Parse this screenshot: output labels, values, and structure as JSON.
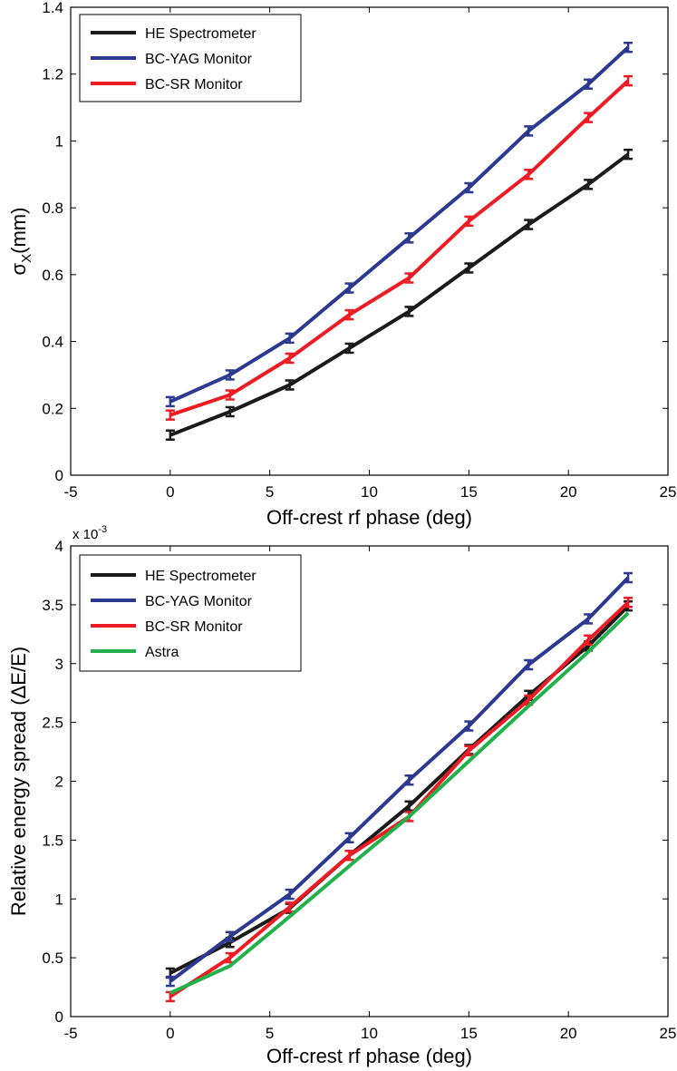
{
  "chart_data": [
    {
      "type": "line",
      "xlabel": "Off-crest rf phase (deg)",
      "ylabel_symbol": "σ",
      "ylabel_subscript": "X",
      "ylabel_unit": "(mm)",
      "xlim": [
        -5,
        25
      ],
      "ylim": [
        0,
        1.4
      ],
      "xticks": [
        -5,
        0,
        5,
        10,
        15,
        20,
        25
      ],
      "yticks": [
        0,
        0.2,
        0.4,
        0.6,
        0.8,
        1,
        1.2,
        1.4
      ],
      "xtick_labels": [
        "-5",
        "0",
        "5",
        "10",
        "15",
        "20",
        "25"
      ],
      "ytick_labels": [
        "0",
        "0.2",
        "0.4",
        "0.6",
        "0.8",
        "1",
        "1.2",
        "1.4"
      ],
      "grid": false,
      "legend_position": "top-left",
      "series": [
        {
          "name": "HE Spectrometer",
          "color": "#1a1a1a",
          "error_bars": true,
          "x": [
            0,
            3,
            6,
            9,
            12,
            15,
            18,
            21,
            23
          ],
          "values": [
            0.12,
            0.19,
            0.27,
            0.38,
            0.49,
            0.62,
            0.75,
            0.87,
            0.96
          ]
        },
        {
          "name": "BC-YAG Monitor",
          "color": "#2b3990",
          "error_bars": true,
          "x": [
            0,
            3,
            6,
            9,
            12,
            15,
            18,
            21,
            23
          ],
          "values": [
            0.22,
            0.3,
            0.41,
            0.56,
            0.71,
            0.86,
            1.03,
            1.17,
            1.28
          ]
        },
        {
          "name": "BC-SR Monitor",
          "color": "#ed1c24",
          "error_bars": true,
          "x": [
            0,
            3,
            6,
            9,
            12,
            15,
            18,
            21,
            23
          ],
          "values": [
            0.18,
            0.24,
            0.35,
            0.48,
            0.59,
            0.76,
            0.9,
            1.07,
            1.18
          ]
        }
      ]
    },
    {
      "type": "line",
      "xlabel": "Off-crest rf phase (deg)",
      "ylabel": "Relative energy spread (ΔE/E)",
      "exponent_label": "x 10",
      "exponent_power": "-3",
      "xlim": [
        -5,
        25
      ],
      "ylim": [
        0,
        4
      ],
      "xticks": [
        -5,
        0,
        5,
        10,
        15,
        20,
        25
      ],
      "yticks": [
        0,
        0.5,
        1,
        1.5,
        2,
        2.5,
        3,
        3.5,
        4
      ],
      "xtick_labels": [
        "-5",
        "0",
        "5",
        "10",
        "15",
        "20",
        "25"
      ],
      "ytick_labels": [
        "0",
        "0.5",
        "1",
        "1.5",
        "2",
        "2.5",
        "3",
        "3.5",
        "4"
      ],
      "grid": false,
      "legend_position": "top-left",
      "series": [
        {
          "name": "HE Spectrometer",
          "color": "#1a1a1a",
          "error_bars": true,
          "x": [
            0,
            3,
            6,
            9,
            12,
            15,
            18,
            21,
            23
          ],
          "values": [
            0.37,
            0.63,
            0.92,
            1.37,
            1.79,
            2.27,
            2.73,
            3.15,
            3.49
          ]
        },
        {
          "name": "BC-YAG Monitor",
          "color": "#2b3990",
          "error_bars": true,
          "x": [
            0,
            3,
            6,
            9,
            12,
            15,
            18,
            21,
            23
          ],
          "values": [
            0.3,
            0.68,
            1.04,
            1.52,
            2.01,
            2.47,
            2.99,
            3.38,
            3.73
          ]
        },
        {
          "name": "BC-SR Monitor",
          "color": "#ed1c24",
          "error_bars": true,
          "x": [
            0,
            3,
            6,
            9,
            12,
            15,
            18,
            21,
            23
          ],
          "values": [
            0.17,
            0.5,
            0.93,
            1.37,
            1.7,
            2.26,
            2.69,
            3.2,
            3.52
          ]
        },
        {
          "name": "Astra",
          "color": "#22b04b",
          "error_bars": false,
          "x": [
            0,
            3,
            6,
            9,
            12,
            15,
            18,
            21,
            23
          ],
          "values": [
            0.2,
            0.43,
            0.85,
            1.28,
            1.7,
            2.17,
            2.64,
            3.1,
            3.43
          ]
        }
      ]
    }
  ]
}
